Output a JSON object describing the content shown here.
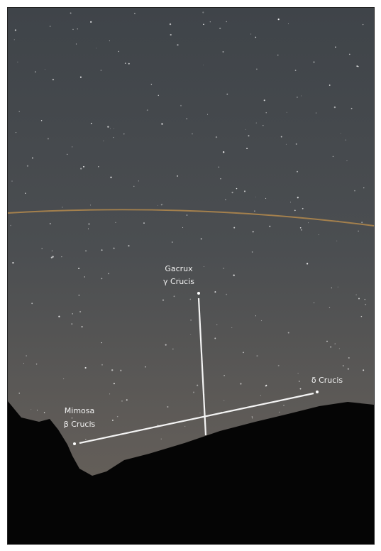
{
  "stars": [
    {
      "name": "Gacrux",
      "designation": "γ Crucis"
    },
    {
      "designation": "δ Crucis"
    },
    {
      "name": "Mimosa",
      "designation": "β Crucis"
    }
  ]
}
